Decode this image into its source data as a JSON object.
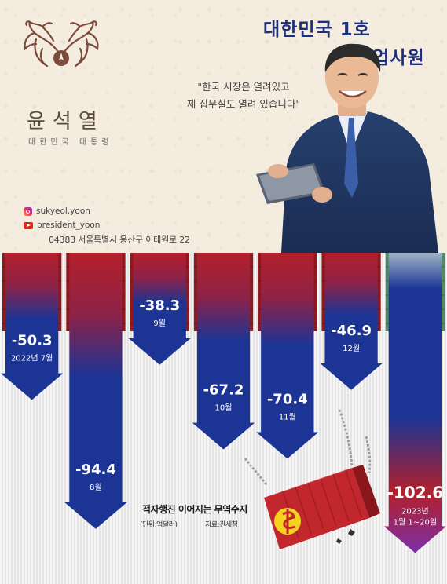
{
  "card": {
    "title_line1": "대한민국 1호",
    "title_line2": "영업사원",
    "quote_line1": "\"한국 시장은 열려있고",
    "quote_line2": "제 집무실도 열려 있습니다\"",
    "name": "윤석열",
    "role": "대한민국 대통령",
    "instagram": "sukyeol.yoon",
    "youtube": "president_yoon",
    "address": "04383 서울특별시 용산구 이태원로 22"
  },
  "colors": {
    "navy": "#1d2f7a",
    "bar_blue": "#1c3494",
    "bar_red": "#b3202a",
    "container_red": "#c2272d",
    "highlight_purple": "#7b2fa8"
  },
  "chart_data": {
    "type": "bar",
    "title": "적자행진 이어지는 무역수지",
    "unit_label": "(단위:억달러)",
    "source_label": "자료:관세청",
    "categories": [
      "2022년 7월",
      "8월",
      "9월",
      "10월",
      "11월",
      "12월",
      "2023년\n1월 1~20일"
    ],
    "category_lines": [
      [
        "2022년 7월"
      ],
      [
        "8월"
      ],
      [
        "9월"
      ],
      [
        "10월"
      ],
      [
        "11월"
      ],
      [
        "12월"
      ],
      [
        "2023년",
        "1월 1~20일"
      ]
    ],
    "values": [
      -50.3,
      -94.4,
      -38.3,
      -67.2,
      -70.4,
      -46.9,
      -102.6
    ],
    "value_labels": [
      "-50.3",
      "-94.4",
      "-38.3",
      "-67.2",
      "-70.4",
      "-46.9",
      "-102.6"
    ],
    "ylim": [
      -110,
      0
    ],
    "highlight_index": 6
  }
}
